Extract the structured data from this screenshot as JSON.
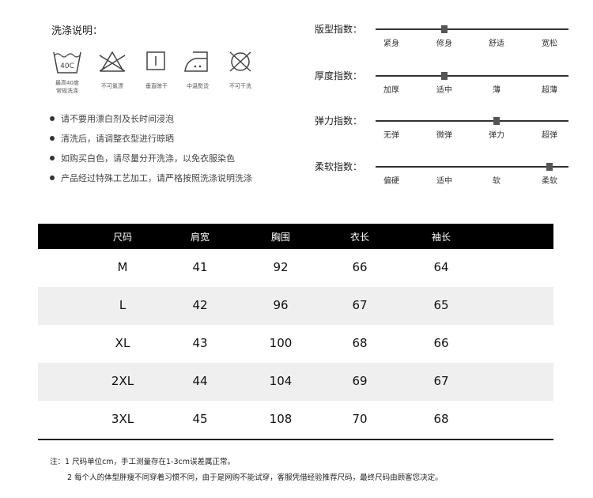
{
  "washing": {
    "title": "洗涤说明：",
    "icons": [
      {
        "icon": "wash-40c-icon",
        "text": "40C",
        "label1": "最高40度",
        "label2": "常规洗涤"
      },
      {
        "icon": "no-bleach-icon",
        "label1": "不可氯漂"
      },
      {
        "icon": "hang-dry-icon",
        "label1": "垂直晾干"
      },
      {
        "icon": "iron-medium-icon",
        "label1": "中温熨烫"
      },
      {
        "icon": "no-dry-clean-icon",
        "label1": "不可干洗"
      }
    ],
    "notes": [
      "请不要用漂白剂及长时间浸泡",
      "清洗后，请调整衣型进行晾晒",
      "如购买白色，请尽量分开洗涤，以免衣服染色",
      "产品经过特殊工艺加工，请严格按照洗涤说明洗涤"
    ]
  },
  "indices": [
    {
      "label": "版型指数：",
      "options": [
        "紧身",
        "修身",
        "舒适",
        "宽松"
      ],
      "selected_index": 1
    },
    {
      "label": "厚度指数：",
      "options": [
        "加厚",
        "适中",
        "薄",
        "超薄"
      ],
      "selected_index": 1
    },
    {
      "label": "弹力指数：",
      "options": [
        "无弹",
        "微弹",
        "弹力",
        "超弹"
      ],
      "selected_index": 2
    },
    {
      "label": "柔软指数：",
      "options": [
        "偏硬",
        "适中",
        "软",
        "柔软"
      ],
      "selected_index": 3
    }
  ],
  "size_table": {
    "headers": [
      "尺码",
      "肩宽",
      "胸围",
      "衣长",
      "袖长"
    ],
    "rows": [
      [
        "M",
        "41",
        "92",
        "66",
        "64"
      ],
      [
        "L",
        "42",
        "96",
        "67",
        "65"
      ],
      [
        "XL",
        "43",
        "100",
        "68",
        "66"
      ],
      [
        "2XL",
        "44",
        "104",
        "69",
        "67"
      ],
      [
        "3XL",
        "45",
        "108",
        "70",
        "68"
      ]
    ],
    "stripe_color": "#efefef",
    "header_color": "#000000"
  },
  "footnotes": [
    "注：1 尺码单位cm，手工测量存在1-3cm误差属正常。",
    "2 每个人的体型胖瘦不同穿着习惯不同，由于是网购不能试穿，客服凭借经验推荐尺码，最终尺码由顾客您决定。"
  ]
}
